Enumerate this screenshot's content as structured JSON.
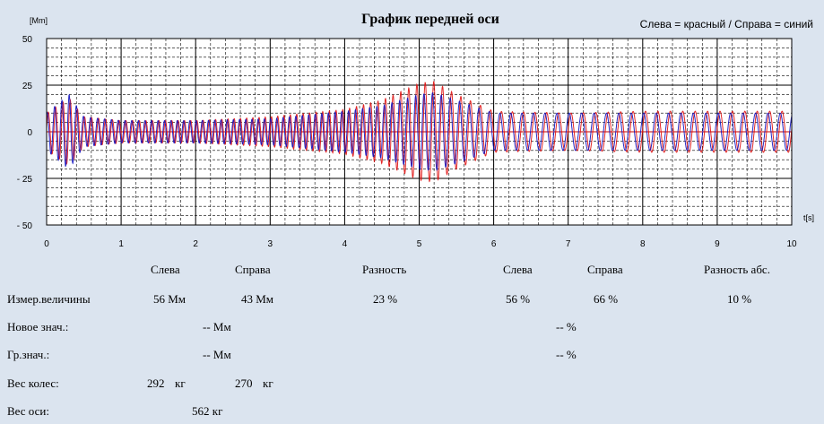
{
  "chart_data": {
    "type": "line",
    "title": "График передней оси",
    "legend_text": "Слева = красный / Справа = синий",
    "ylabel": "[Mm]",
    "xlabel": "t[s]",
    "xlim": [
      0,
      10
    ],
    "ylim": [
      -50,
      50
    ],
    "x_ticks": [
      "0",
      "1",
      "2",
      "3",
      "4",
      "5",
      "6",
      "7",
      "8",
      "9",
      "10"
    ],
    "y_ticks": [
      "50",
      "25",
      "0",
      "- 25",
      "- 50"
    ],
    "y_tick_values": [
      50,
      25,
      0,
      -25,
      -50
    ],
    "grid": true,
    "series": [
      {
        "name": "Слева",
        "color": "#e01010",
        "envelope": {
          "t": [
            0,
            0.3,
            0.5,
            1,
            2,
            3,
            3.5,
            4,
            4.5,
            5,
            5.2,
            5.5,
            6,
            7,
            8,
            9,
            10
          ],
          "amp": [
            10,
            18,
            8,
            6,
            6,
            8,
            10,
            12,
            17,
            26,
            27,
            20,
            11,
            10,
            11,
            11,
            11
          ]
        },
        "frequency": {
          "t": [
            0,
            2,
            3,
            4,
            5,
            6,
            7,
            8,
            10
          ],
          "hz": [
            10,
            12,
            12,
            11,
            9,
            7,
            6,
            6,
            6
          ]
        }
      },
      {
        "name": "Справа",
        "color": "#1010c0",
        "envelope": {
          "t": [
            0,
            0.3,
            0.5,
            1,
            2,
            3,
            3.5,
            4,
            4.5,
            5,
            5.2,
            5.5,
            6,
            7,
            8,
            9,
            10
          ],
          "amp": [
            10,
            20,
            8,
            6,
            6,
            7,
            9,
            11,
            14,
            20,
            21,
            17,
            10,
            10,
            10,
            10,
            10
          ]
        },
        "frequency": {
          "t": [
            0,
            2,
            3,
            4,
            5,
            6,
            7,
            8,
            10
          ],
          "hz": [
            10,
            12,
            12,
            11,
            9,
            7,
            6,
            6,
            6
          ]
        }
      }
    ]
  },
  "colors": {
    "background": "#dbe4ef",
    "plot_background": "#ffffff",
    "left_series": "#e01010",
    "right_series": "#1010c0"
  },
  "table": {
    "headers": {
      "left": "Слева",
      "right": "Справа",
      "diff": "Разность",
      "left_pct": "Слева",
      "right_pct": "Справа",
      "diff_abs": "Разность абс."
    },
    "rows": {
      "measured": {
        "label": "Измер.величины",
        "left": "56 Мм",
        "right": "43 Мм",
        "diff": "23 %",
        "left_pct": "56 %",
        "right_pct": "66 %",
        "diff_abs": "10 %"
      },
      "new_value": {
        "label": "Новое знач.:",
        "mm": "-- Мм",
        "pct": "-- %"
      },
      "limit_value": {
        "label": "Гр.знач.:",
        "mm": "-- Мм",
        "pct": "-- %"
      },
      "wheel_weight": {
        "label": "Вес колес:",
        "left": "292",
        "left_unit": "кг",
        "right": "270",
        "right_unit": "кг"
      },
      "axle_weight": {
        "label": "Вес оси:",
        "value": "562 кг"
      }
    }
  }
}
